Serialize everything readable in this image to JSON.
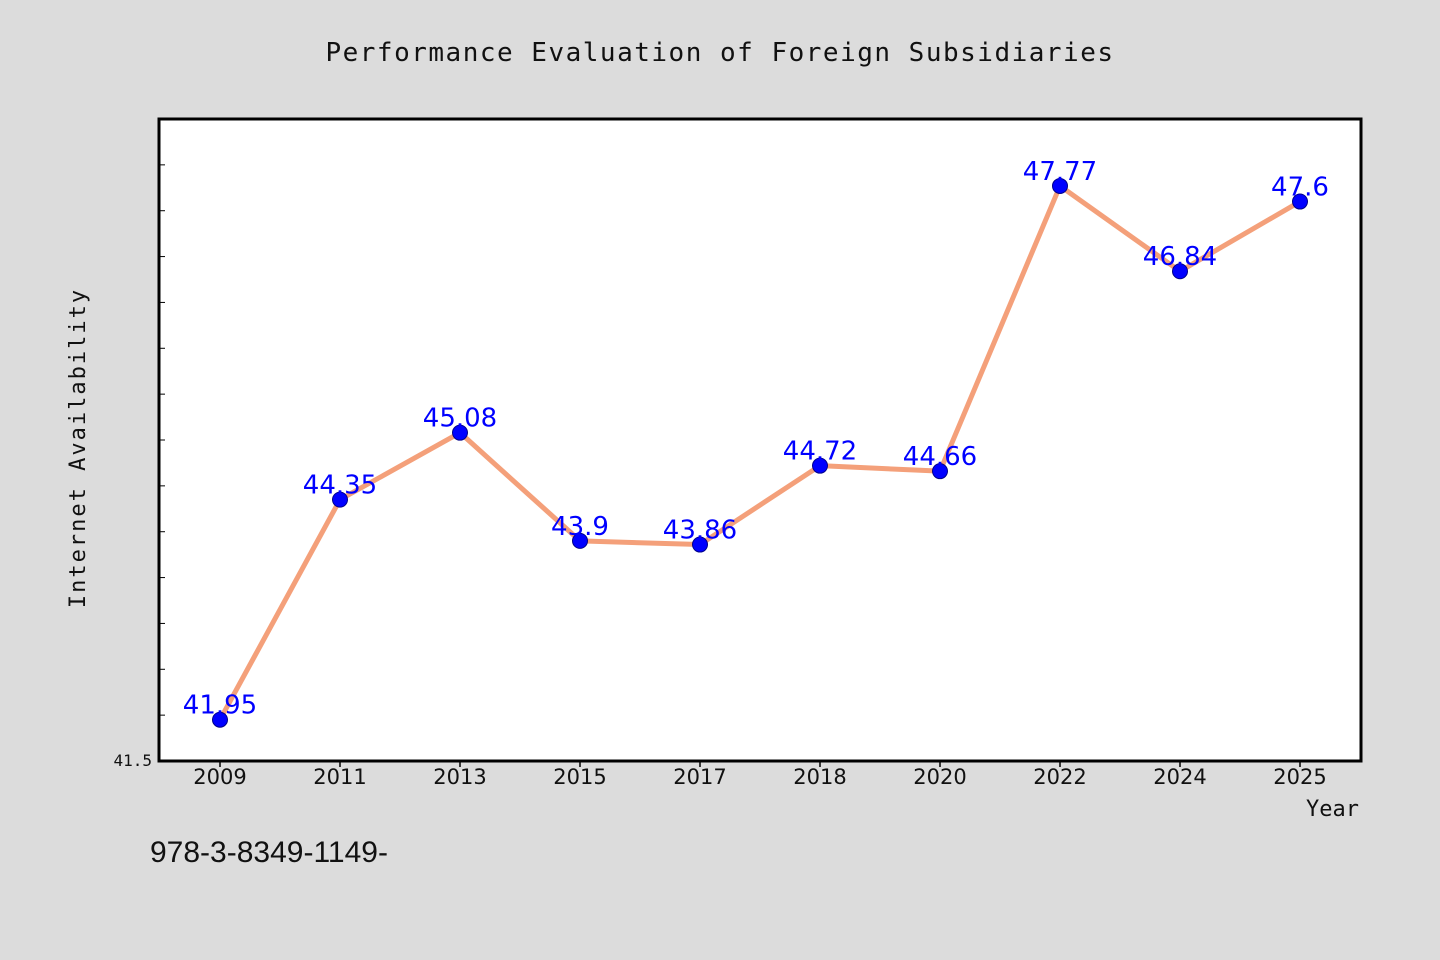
{
  "chart_data": {
    "type": "line",
    "title": "Performance Evaluation of Foreign Subsidiaries",
    "xlabel": "Year",
    "ylabel": "Internet Availability",
    "categories": [
      "2009",
      "2011",
      "2013",
      "2015",
      "2017",
      "2018",
      "2020",
      "2022",
      "2024",
      "2025"
    ],
    "series": [
      {
        "values": [
          41.95,
          44.35,
          45.08,
          43.9,
          43.86,
          44.72,
          44.66,
          47.77,
          46.84,
          47.6
        ],
        "labels": [
          "41.95",
          "44.35",
          "45.08",
          "43.9",
          "43.86",
          "44.72",
          "44.66",
          "47.77",
          "46.84",
          "47.6"
        ]
      }
    ],
    "ylim": [
      41.5,
      48.5
    ],
    "y_tick_labels": [
      "41.5"
    ],
    "grid": false,
    "legend": "none",
    "colors": {
      "line": "#f4a07a",
      "marker": "#0000ff",
      "data_label": "#0000ff",
      "plot_bg": "#ffffff",
      "figure_bg": "#dcdcdc"
    }
  },
  "footer_text": "978-3-8349-1149-"
}
